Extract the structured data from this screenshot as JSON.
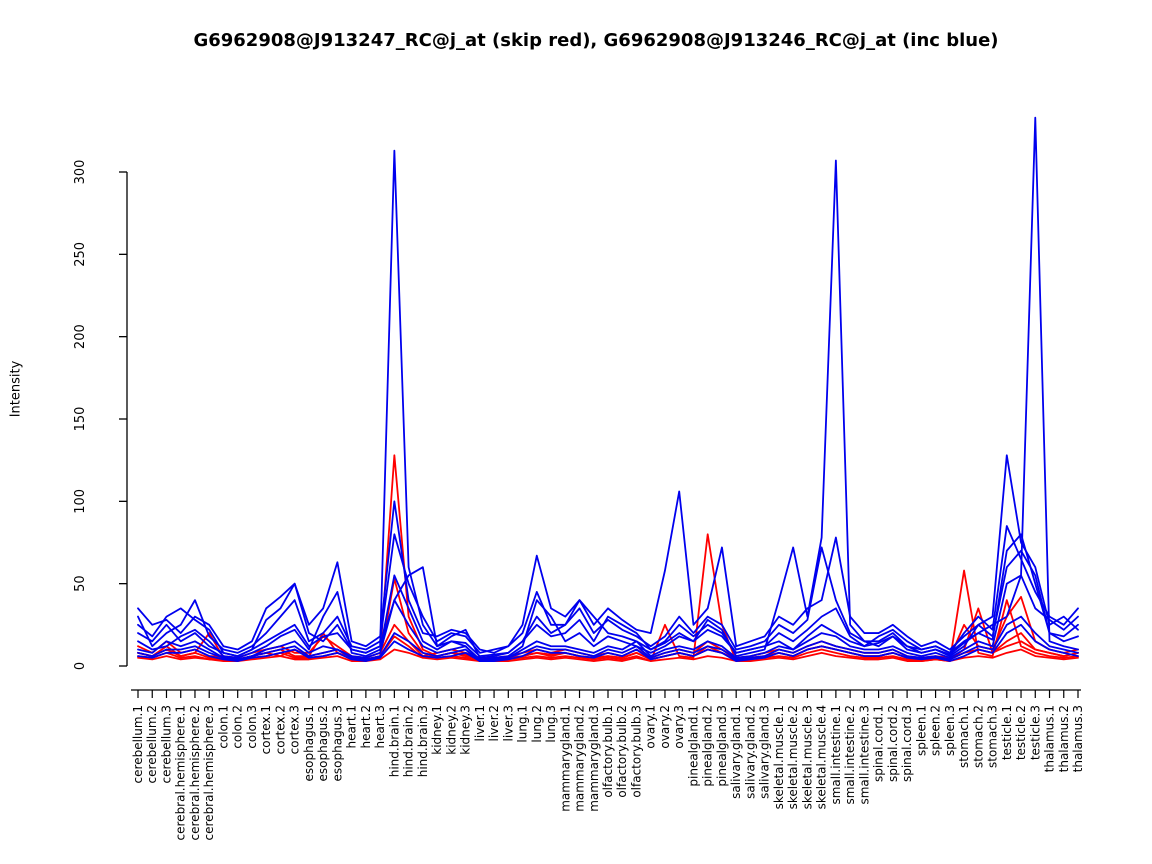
{
  "title": "G6962908@J913247_RC@j_at (skip red), G6962908@J913246_RC@j_at (inc blue)",
  "chart_data": {
    "type": "line",
    "title": "G6962908@J913247_RC@j_at (skip red), G6962908@J913246_RC@j_at (inc blue)",
    "xlabel": "",
    "ylabel": "Intensity",
    "ylim": [
      0,
      340
    ],
    "yticks": [
      0,
      50,
      100,
      150,
      200,
      250,
      300
    ],
    "grid": false,
    "legend_position": "none (encoded in title: skip probe = red, inc probe = blue)",
    "colors": {
      "skip": "#ff0000",
      "inc": "#0000ee",
      "axis": "#000000"
    },
    "categories": [
      "cerebellum.1",
      "cerebellum.2",
      "cerebellum.3",
      "cerebral.hemisphere.1",
      "cerebral.hemisphere.2",
      "cerebral.hemisphere.3",
      "colon.1",
      "colon.2",
      "colon.3",
      "cortex.1",
      "cortex.2",
      "cortex.3",
      "esophagus.1",
      "esophagus.2",
      "esophagus.3",
      "heart.1",
      "heart.2",
      "heart.3",
      "hind.brain.1",
      "hind.brain.2",
      "hind.brain.3",
      "kidney.1",
      "kidney.2",
      "kidney.3",
      "liver.1",
      "liver.2",
      "liver.3",
      "lung.1",
      "lung.2",
      "lung.3",
      "mammarygland.1",
      "mammarygland.2",
      "mammarygland.3",
      "olfactory.bulb.1",
      "olfactory.bulb.2",
      "olfactory.bulb.3",
      "ovary.1",
      "ovary.2",
      "ovary.3",
      "pinealgland.1",
      "pinealgland.2",
      "pinealgland.3",
      "salivary.gland.1",
      "salivary.gland.2",
      "salivary.gland.3",
      "skeletal.muscle.1",
      "skeletal.muscle.2",
      "skeletal.muscle.3",
      "skeletal.muscle.4",
      "small.intestine.1",
      "small.intestine.2",
      "small.intestine.3",
      "spinal.cord.1",
      "spinal.cord.2",
      "spinal.cord.3",
      "spleen.1",
      "spleen.2",
      "spleen.3",
      "stomach.1",
      "stomach.2",
      "stomach.3",
      "testicle.1",
      "testicle.2",
      "testicle.3",
      "thalamus.1",
      "thalamus.2",
      "thalamus.3"
    ],
    "series": [
      {
        "name": "J913247_RC@j_at (skip) probe line 1",
        "color": "#ff0000",
        "values": [
          8,
          6,
          10,
          6,
          8,
          5,
          5,
          4,
          6,
          8,
          10,
          6,
          6,
          8,
          10,
          5,
          4,
          6,
          128,
          30,
          10,
          6,
          8,
          7,
          4,
          4,
          5,
          6,
          8,
          7,
          8,
          6,
          5,
          6,
          5,
          8,
          4,
          6,
          8,
          6,
          10,
          8,
          4,
          5,
          6,
          8,
          6,
          10,
          12,
          10,
          8,
          6,
          6,
          8,
          5,
          4,
          5,
          4,
          8,
          10,
          8,
          12,
          15,
          10,
          8,
          6,
          8
        ]
      },
      {
        "name": "J913247_RC@j_at (skip) probe line 2",
        "color": "#ff0000",
        "values": [
          6,
          5,
          8,
          5,
          6,
          4,
          4,
          3,
          5,
          6,
          8,
          5,
          5,
          6,
          8,
          4,
          3,
          5,
          53,
          20,
          8,
          5,
          6,
          5,
          3,
          3,
          4,
          5,
          6,
          5,
          6,
          5,
          4,
          5,
          4,
          6,
          3,
          25,
          6,
          5,
          80,
          25,
          3,
          4,
          5,
          6,
          5,
          8,
          10,
          8,
          6,
          5,
          5,
          6,
          4,
          3,
          4,
          3,
          58,
          8,
          6,
          40,
          12,
          8,
          6,
          5,
          6
        ]
      },
      {
        "name": "J913247_RC@j_at (skip) probe line 3",
        "color": "#ff0000",
        "values": [
          12,
          8,
          15,
          8,
          10,
          6,
          6,
          5,
          8,
          10,
          12,
          8,
          8,
          18,
          12,
          6,
          5,
          8,
          25,
          15,
          6,
          8,
          10,
          8,
          5,
          5,
          6,
          8,
          10,
          8,
          10,
          8,
          6,
          8,
          6,
          10,
          5,
          8,
          10,
          8,
          15,
          10,
          5,
          6,
          8,
          10,
          8,
          12,
          15,
          12,
          10,
          8,
          8,
          10,
          6,
          5,
          6,
          5,
          25,
          12,
          10,
          30,
          42,
          15,
          10,
          8,
          10
        ]
      },
      {
        "name": "J913247_RC@j_at (skip) probe line 4",
        "color": "#ff0000",
        "values": [
          5,
          4,
          6,
          4,
          5,
          4,
          3,
          3,
          4,
          5,
          6,
          4,
          4,
          5,
          6,
          3,
          3,
          4,
          10,
          8,
          5,
          4,
          5,
          4,
          3,
          3,
          3,
          4,
          5,
          4,
          5,
          4,
          3,
          4,
          3,
          5,
          3,
          4,
          5,
          4,
          6,
          5,
          3,
          3,
          4,
          5,
          4,
          6,
          8,
          6,
          5,
          4,
          4,
          5,
          3,
          3,
          4,
          3,
          5,
          6,
          5,
          8,
          10,
          6,
          5,
          4,
          5
        ]
      },
      {
        "name": "J913247_RC@j_at (skip) probe line 5",
        "color": "#ff0000",
        "values": [
          8,
          6,
          12,
          6,
          8,
          20,
          5,
          4,
          6,
          8,
          6,
          10,
          6,
          20,
          8,
          5,
          4,
          6,
          18,
          12,
          5,
          6,
          8,
          6,
          4,
          4,
          5,
          6,
          8,
          6,
          8,
          6,
          5,
          6,
          5,
          8,
          4,
          6,
          8,
          6,
          12,
          8,
          4,
          5,
          6,
          8,
          6,
          10,
          12,
          10,
          8,
          6,
          6,
          8,
          5,
          4,
          5,
          4,
          10,
          35,
          8,
          15,
          20,
          10,
          8,
          6,
          8
        ]
      },
      {
        "name": "J913246_RC@j_at (inc) probe line 1",
        "color": "#0000ee",
        "values": [
          25,
          18,
          30,
          35,
          28,
          22,
          8,
          6,
          10,
          28,
          35,
          50,
          20,
          15,
          25,
          10,
          8,
          12,
          313,
          60,
          25,
          12,
          18,
          22,
          5,
          6,
          8,
          15,
          25,
          18,
          20,
          28,
          15,
          30,
          25,
          20,
          10,
          15,
          25,
          18,
          25,
          20,
          8,
          10,
          12,
          15,
          10,
          18,
          25,
          20,
          15,
          12,
          18,
          22,
          15,
          10,
          12,
          8,
          15,
          20,
          25,
          30,
          55,
          35,
          28,
          22,
          30
        ]
      },
      {
        "name": "J913246_RC@j_at (inc) probe line 2",
        "color": "#0000ee",
        "values": [
          15,
          10,
          12,
          18,
          22,
          15,
          6,
          5,
          8,
          12,
          18,
          22,
          10,
          30,
          45,
          8,
          6,
          10,
          55,
          35,
          15,
          10,
          15,
          12,
          4,
          5,
          6,
          12,
          40,
          30,
          15,
          20,
          12,
          18,
          15,
          12,
          8,
          12,
          18,
          15,
          28,
          22,
          6,
          8,
          10,
          40,
          72,
          30,
          78,
          307,
          25,
          15,
          12,
          18,
          10,
          8,
          10,
          6,
          12,
          25,
          18,
          60,
          70,
          55,
          20,
          15,
          18
        ]
      },
      {
        "name": "J913246_RC@j_at (inc) probe line 3",
        "color": "#0000ee",
        "values": [
          10,
          8,
          15,
          12,
          15,
          10,
          5,
          4,
          6,
          10,
          12,
          15,
          8,
          12,
          10,
          6,
          5,
          8,
          40,
          25,
          12,
          8,
          10,
          12,
          3,
          4,
          5,
          10,
          15,
          12,
          12,
          10,
          8,
          12,
          10,
          15,
          6,
          10,
          12,
          10,
          15,
          12,
          5,
          6,
          8,
          12,
          10,
          15,
          20,
          18,
          12,
          10,
          10,
          12,
          8,
          6,
          8,
          5,
          10,
          15,
          12,
          50,
          55,
          333,
          15,
          12,
          10
        ]
      },
      {
        "name": "J913246_RC@j_at (inc) probe line 4",
        "color": "#0000ee",
        "values": [
          30,
          12,
          20,
          25,
          40,
          18,
          10,
          8,
          12,
          20,
          30,
          40,
          15,
          20,
          30,
          12,
          10,
          15,
          80,
          50,
          30,
          15,
          20,
          18,
          8,
          10,
          12,
          25,
          67,
          35,
          30,
          40,
          25,
          35,
          28,
          22,
          20,
          58,
          106,
          25,
          35,
          72,
          12,
          15,
          18,
          30,
          25,
          35,
          40,
          78,
          30,
          20,
          20,
          25,
          18,
          12,
          15,
          10,
          18,
          25,
          30,
          128,
          75,
          60,
          25,
          30,
          22
        ]
      },
      {
        "name": "J913246_RC@j_at (inc) probe line 5",
        "color": "#0000ee",
        "values": [
          35,
          25,
          28,
          20,
          30,
          25,
          12,
          10,
          15,
          35,
          42,
          50,
          25,
          35,
          63,
          15,
          12,
          18,
          100,
          40,
          20,
          18,
          22,
          20,
          10,
          8,
          12,
          20,
          45,
          25,
          25,
          35,
          20,
          28,
          22,
          18,
          12,
          18,
          30,
          20,
          30,
          25,
          10,
          12,
          15,
          25,
          20,
          28,
          72,
          40,
          20,
          15,
          15,
          20,
          12,
          10,
          12,
          8,
          20,
          30,
          22,
          85,
          65,
          45,
          30,
          25,
          35
        ]
      },
      {
        "name": "J913246_RC@j_at (inc) probe line 6",
        "color": "#0000ee",
        "values": [
          8,
          6,
          10,
          10,
          12,
          8,
          5,
          4,
          6,
          8,
          10,
          12,
          6,
          8,
          10,
          5,
          4,
          6,
          20,
          15,
          8,
          6,
          8,
          10,
          3,
          4,
          5,
          8,
          12,
          10,
          10,
          8,
          6,
          10,
          8,
          12,
          5,
          8,
          10,
          8,
          12,
          10,
          4,
          5,
          6,
          10,
          8,
          12,
          15,
          12,
          10,
          8,
          8,
          10,
          6,
          5,
          6,
          4,
          8,
          12,
          10,
          25,
          30,
          20,
          12,
          10,
          8
        ]
      },
      {
        "name": "J913246_RC@j_at (inc) probe line 7",
        "color": "#0000ee",
        "values": [
          6,
          5,
          8,
          8,
          10,
          6,
          4,
          3,
          5,
          6,
          8,
          10,
          5,
          6,
          8,
          4,
          3,
          5,
          15,
          10,
          6,
          5,
          6,
          8,
          3,
          3,
          4,
          6,
          10,
          8,
          8,
          6,
          5,
          8,
          6,
          10,
          4,
          6,
          8,
          6,
          10,
          8,
          3,
          4,
          5,
          8,
          6,
          10,
          12,
          10,
          8,
          6,
          6,
          8,
          5,
          4,
          5,
          3,
          6,
          10,
          8,
          20,
          25,
          15,
          10,
          8,
          6
        ]
      },
      {
        "name": "J913246_RC@j_at (inc) probe line 8",
        "color": "#0000ee",
        "values": [
          20,
          15,
          25,
          15,
          20,
          12,
          8,
          6,
          10,
          15,
          20,
          25,
          12,
          18,
          20,
          10,
          8,
          12,
          40,
          55,
          60,
          12,
          15,
          14,
          6,
          7,
          8,
          15,
          30,
          20,
          25,
          40,
          30,
          20,
          18,
          15,
          10,
          14,
          20,
          15,
          22,
          18,
          8,
          10,
          12,
          20,
          15,
          22,
          30,
          35,
          18,
          12,
          14,
          18,
          12,
          8,
          10,
          7,
          14,
          20,
          16,
          70,
          80,
          50,
          20,
          18,
          25
        ]
      }
    ]
  }
}
